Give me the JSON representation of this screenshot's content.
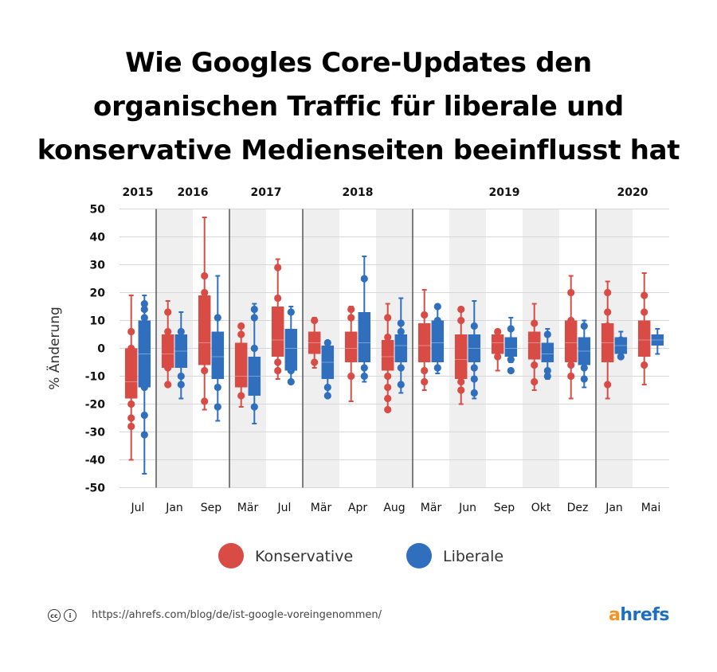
{
  "title_lines": [
    "Wie Googles Core-Updates den",
    "organischen Traffic für liberale und",
    "konservative Medienseiten beeinflusst hat"
  ],
  "footer": {
    "url": "https://ahrefs.com/blog/de/ist-google-voreingenommen/",
    "logo_a": "a",
    "logo_rest": "hrefs"
  },
  "colors": {
    "conservative": "#d94b45",
    "liberal": "#2f6fbd",
    "shade": "#efefef"
  },
  "chart_data": {
    "type": "boxplot",
    "ylabel": "% Änderung",
    "ylim": [
      -50,
      50
    ],
    "yticks": [
      50,
      40,
      30,
      20,
      10,
      0,
      -10,
      -20,
      -30,
      -40,
      -50
    ],
    "years": [
      {
        "label": "2015",
        "start": 0,
        "end": 0
      },
      {
        "label": "2016",
        "start": 1,
        "end": 2
      },
      {
        "label": "2017",
        "start": 3,
        "end": 4
      },
      {
        "label": "2018",
        "start": 5,
        "end": 7
      },
      {
        "label": "2019",
        "start": 8,
        "end": 12
      },
      {
        "label": "2020",
        "start": 13,
        "end": 14
      }
    ],
    "categories": [
      "Jul",
      "Jan",
      "Sep",
      "Mär",
      "Jul",
      "Mär",
      "Apr",
      "Aug",
      "Mär",
      "Jun",
      "Sep",
      "Okt",
      "Dez",
      "Jan",
      "Mai"
    ],
    "shaded": [
      false,
      true,
      false,
      true,
      false,
      true,
      false,
      true,
      false,
      true,
      false,
      true,
      false,
      true,
      false
    ],
    "legend": [
      {
        "name": "Konservative",
        "key": "conservative"
      },
      {
        "name": "Liberale",
        "key": "liberal"
      }
    ],
    "series": [
      {
        "name": "Konservative",
        "key": "conservative",
        "boxes": [
          {
            "whisker_low": -40,
            "q1": -18,
            "median": -12,
            "q3": 0,
            "whisker_high": 19,
            "outliers": [
              6,
              0,
              -20,
              -25,
              -28
            ]
          },
          {
            "whisker_low": -13,
            "q1": -7,
            "median": -2,
            "q3": 5,
            "whisker_high": 17,
            "outliers": [
              13,
              6,
              -7,
              -13
            ]
          },
          {
            "whisker_low": -22,
            "q1": -6,
            "median": 2,
            "q3": 19,
            "whisker_high": 47,
            "outliers": [
              26,
              20,
              -8,
              -19
            ]
          },
          {
            "whisker_low": -21,
            "q1": -14,
            "median": -10,
            "q3": 2,
            "whisker_high": 8,
            "outliers": [
              8,
              5,
              -17
            ]
          },
          {
            "whisker_low": -11,
            "q1": -3,
            "median": 3,
            "q3": 15,
            "whisker_high": 32,
            "outliers": [
              29,
              18,
              -5,
              -8
            ]
          },
          {
            "whisker_low": -7,
            "q1": -2,
            "median": 2,
            "q3": 6,
            "whisker_high": 11,
            "outliers": [
              10,
              -5
            ]
          },
          {
            "whisker_low": -19,
            "q1": -5,
            "median": 0,
            "q3": 6,
            "whisker_high": 15,
            "outliers": [
              14,
              11,
              -10
            ]
          },
          {
            "whisker_low": -22,
            "q1": -8,
            "median": -3,
            "q3": 3,
            "whisker_high": 16,
            "outliers": [
              11,
              4,
              -10,
              -14,
              -18,
              -22
            ]
          },
          {
            "whisker_low": -15,
            "q1": -5,
            "median": 1,
            "q3": 9,
            "whisker_high": 21,
            "outliers": [
              12,
              -8,
              -12
            ]
          },
          {
            "whisker_low": -20,
            "q1": -11,
            "median": -4,
            "q3": 5,
            "whisker_high": 14,
            "outliers": [
              14,
              10,
              -12,
              -15
            ]
          },
          {
            "whisker_low": -8,
            "q1": -2,
            "median": 2,
            "q3": 5,
            "whisker_high": 6,
            "outliers": [
              6,
              -3
            ]
          },
          {
            "whisker_low": -15,
            "q1": -4,
            "median": 2,
            "q3": 6,
            "whisker_high": 16,
            "outliers": [
              9,
              -6,
              -12
            ]
          },
          {
            "whisker_low": -18,
            "q1": -5,
            "median": 2,
            "q3": 10,
            "whisker_high": 26,
            "outliers": [
              20,
              10,
              -6,
              -10
            ]
          },
          {
            "whisker_low": -18,
            "q1": -5,
            "median": 2,
            "q3": 9,
            "whisker_high": 24,
            "outliers": [
              20,
              13,
              8,
              -13
            ]
          },
          {
            "whisker_low": -13,
            "q1": -3,
            "median": 3,
            "q3": 10,
            "whisker_high": 27,
            "outliers": [
              19,
              13,
              -6
            ]
          }
        ]
      },
      {
        "name": "Liberale",
        "key": "liberal",
        "boxes": [
          {
            "whisker_low": -45,
            "q1": -14,
            "median": -2,
            "q3": 10,
            "whisker_high": 19,
            "outliers": [
              16,
              14,
              11,
              -14,
              -24,
              -31
            ]
          },
          {
            "whisker_low": -18,
            "q1": -7,
            "median": -1,
            "q3": 5,
            "whisker_high": 13,
            "outliers": [
              6,
              -10,
              -13
            ]
          },
          {
            "whisker_low": -26,
            "q1": -11,
            "median": -3,
            "q3": 6,
            "whisker_high": 26,
            "outliers": [
              11,
              -14,
              -21
            ]
          },
          {
            "whisker_low": -27,
            "q1": -17,
            "median": -10,
            "q3": -3,
            "whisker_high": 16,
            "outliers": [
              14,
              11,
              0,
              -21
            ]
          },
          {
            "whisker_low": -12,
            "q1": -8,
            "median": 0,
            "q3": 7,
            "whisker_high": 15,
            "outliers": [
              13,
              -8,
              -12
            ]
          },
          {
            "whisker_low": -17,
            "q1": -11,
            "median": -5,
            "q3": 1,
            "whisker_high": 2,
            "outliers": [
              2,
              -14,
              -17
            ]
          },
          {
            "whisker_low": -12,
            "q1": -5,
            "median": 2,
            "q3": 13,
            "whisker_high": 33,
            "outliers": [
              25,
              -7,
              -10
            ]
          },
          {
            "whisker_low": -16,
            "q1": -5,
            "median": 1,
            "q3": 5,
            "whisker_high": 18,
            "outliers": [
              9,
              6,
              -7,
              -13
            ]
          },
          {
            "whisker_low": -9,
            "q1": -5,
            "median": 2,
            "q3": 10,
            "whisker_high": 15,
            "outliers": [
              15,
              10,
              -7
            ]
          },
          {
            "whisker_low": -18,
            "q1": -5,
            "median": 0,
            "q3": 5,
            "whisker_high": 17,
            "outliers": [
              8,
              -7,
              -11,
              -16
            ]
          },
          {
            "whisker_low": -5,
            "q1": -3,
            "median": 0,
            "q3": 4,
            "whisker_high": 11,
            "outliers": [
              7,
              -4,
              -8
            ]
          },
          {
            "whisker_low": -11,
            "q1": -5,
            "median": -2,
            "q3": 2,
            "whisker_high": 7,
            "outliers": [
              5,
              -8,
              -10
            ]
          },
          {
            "whisker_low": -14,
            "q1": -6,
            "median": -1,
            "q3": 4,
            "whisker_high": 10,
            "outliers": [
              8,
              -7,
              -11
            ]
          },
          {
            "whisker_low": -3,
            "q1": -2,
            "median": 1,
            "q3": 4,
            "whisker_high": 6,
            "outliers": [
              3,
              -3
            ]
          },
          {
            "whisker_low": -2,
            "q1": 1,
            "median": 3,
            "q3": 5,
            "whisker_high": 7,
            "outliers": []
          }
        ]
      }
    ]
  }
}
